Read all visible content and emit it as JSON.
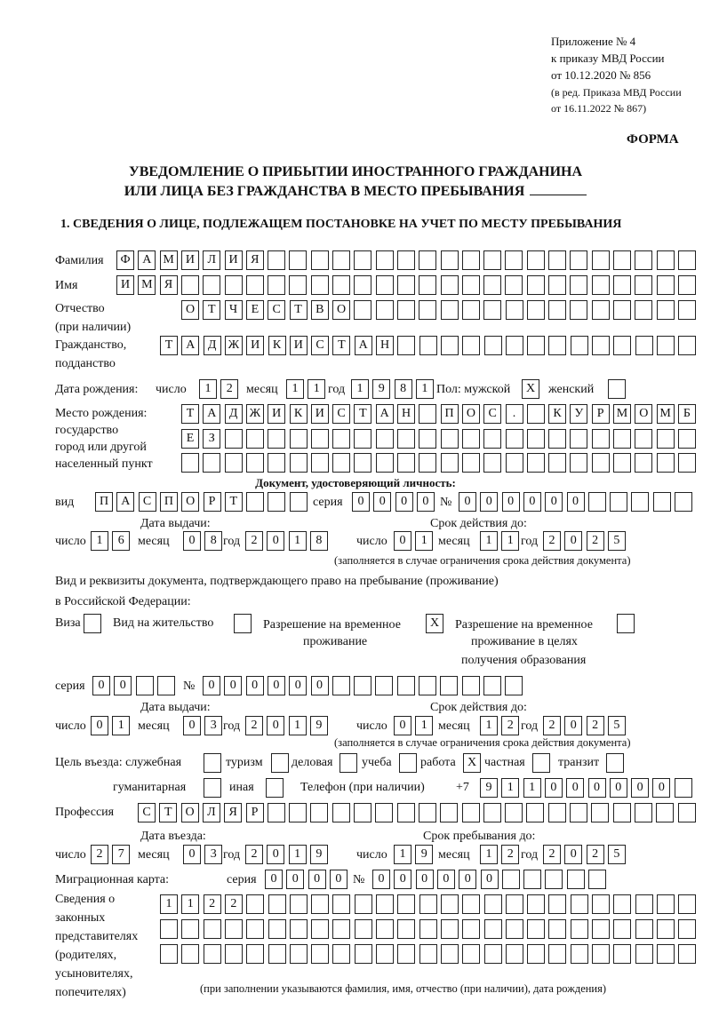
{
  "header": {
    "line1": "Приложение № 4",
    "line2": "к приказу МВД России",
    "line3": "от 10.12.2020 № 856",
    "line4": "(в ред. Приказа МВД России",
    "line5": "от 16.11.2022 № 867)",
    "form_label": "ФОРМА",
    "title1": "УВЕДОМЛЕНИЕ О ПРИБЫТИИ ИНОСТРАННОГО ГРАЖДАНИНА",
    "title2": "ИЛИ ЛИЦА БЕЗ ГРАЖДАНСТВА В МЕСТО ПРЕБЫВАНИЯ",
    "section1": "1. СВЕДЕНИЯ О ЛИЦЕ, ПОДЛЕЖАЩЕМ ПОСТАНОВКЕ НА УЧЕТ ПО МЕСТУ ПРЕБЫВАНИЯ"
  },
  "person": {
    "surname_label": "Фамилия",
    "surname": [
      "Ф",
      "А",
      "М",
      "И",
      "Л",
      "И",
      "Я",
      "",
      "",
      "",
      "",
      "",
      "",
      "",
      "",
      "",
      "",
      "",
      "",
      "",
      "",
      "",
      "",
      "",
      "",
      "",
      ""
    ],
    "name_label": "Имя",
    "name": [
      "И",
      "М",
      "Я",
      "",
      "",
      "",
      "",
      "",
      "",
      "",
      "",
      "",
      "",
      "",
      "",
      "",
      "",
      "",
      "",
      "",
      "",
      "",
      "",
      "",
      "",
      "",
      ""
    ],
    "patronymic_label": "Отчество",
    "patronymic_label2": "(при наличии)",
    "patronymic": [
      "О",
      "Т",
      "Ч",
      "Е",
      "С",
      "Т",
      "В",
      "О",
      "",
      "",
      "",
      "",
      "",
      "",
      "",
      "",
      "",
      "",
      "",
      "",
      "",
      "",
      "",
      ""
    ],
    "citizenship_label": "Гражданство,",
    "citizenship_label2": "подданство",
    "citizenship": [
      "Т",
      "А",
      "Д",
      "Ж",
      "И",
      "К",
      "И",
      "С",
      "Т",
      "А",
      "Н",
      "",
      "",
      "",
      "",
      "",
      "",
      "",
      "",
      "",
      "",
      "",
      "",
      "",
      ""
    ],
    "birth_label": "Дата рождения:",
    "day_label": "число",
    "month_label": "месяц",
    "year_label": "год",
    "birth_day": [
      "1",
      "2"
    ],
    "birth_month": [
      "1",
      "1"
    ],
    "birth_year": [
      "1",
      "9",
      "8",
      "1"
    ],
    "sex_male_label": "Пол: мужской",
    "sex_male": [
      "X"
    ],
    "sex_female_label": "женский",
    "sex_female": [
      ""
    ],
    "birthplace_label1": "Место рождения:",
    "birthplace_label2": "государство",
    "birthplace_label3": "город или другой",
    "birthplace_label4": "населенный пункт",
    "birthplace_row1": [
      "Т",
      "А",
      "Д",
      "Ж",
      "И",
      "К",
      "И",
      "С",
      "Т",
      "А",
      "Н",
      "",
      "П",
      "О",
      "С",
      ".",
      "",
      "К",
      "У",
      "Р",
      "М",
      "О",
      "М",
      "Б"
    ],
    "birthplace_row2": [
      "Е",
      "З",
      "",
      "",
      "",
      "",
      "",
      "",
      "",
      "",
      "",
      "",
      "",
      "",
      "",
      "",
      "",
      "",
      "",
      "",
      "",
      "",
      "",
      ""
    ],
    "birthplace_row3": [
      "",
      "",
      "",
      "",
      "",
      "",
      "",
      "",
      "",
      "",
      "",
      "",
      "",
      "",
      "",
      "",
      "",
      "",
      "",
      "",
      "",
      "",
      "",
      ""
    ]
  },
  "id_doc": {
    "heading": "Документ, удостоверяющий личность:",
    "kind_label": "вид",
    "kind": [
      "П",
      "А",
      "С",
      "П",
      "О",
      "Р",
      "Т",
      "",
      "",
      ""
    ],
    "series_label": "серия",
    "series": [
      "0",
      "0",
      "0",
      "0"
    ],
    "number_label": "№",
    "number": [
      "0",
      "0",
      "0",
      "0",
      "0",
      "0",
      "",
      "",
      "",
      "",
      ""
    ],
    "issue_label": "Дата выдачи:",
    "valid_label": "Срок действия до:",
    "issue_day": [
      "1",
      "6"
    ],
    "issue_month": [
      "0",
      "8"
    ],
    "issue_year": [
      "2",
      "0",
      "1",
      "8"
    ],
    "valid_day": [
      "0",
      "1"
    ],
    "valid_month": [
      "1",
      "1"
    ],
    "valid_year": [
      "2",
      "0",
      "2",
      "5"
    ],
    "note": "(заполняется в случае ограничения срока действия документа)"
  },
  "stay_doc": {
    "heading1": "Вид и реквизиты документа, подтверждающего право на пребывание (проживание)",
    "heading2": "в Российской Федерации:",
    "visa_label": "Виза",
    "visa": [
      ""
    ],
    "residence_label": "Вид на жительство",
    "residence": [
      ""
    ],
    "temp_label1": "Разрешение на временное",
    "temp_label2": "проживание",
    "temp": [
      "X"
    ],
    "edu_label1": "Разрешение на временное",
    "edu_label2": "проживание в целях",
    "edu_label3": "получения образования",
    "edu": [
      ""
    ],
    "series_label": "серия",
    "series": [
      "0",
      "0",
      "",
      ""
    ],
    "number_label": "№",
    "number": [
      "0",
      "0",
      "0",
      "0",
      "0",
      "0",
      "",
      "",
      "",
      "",
      "",
      "",
      "",
      "",
      ""
    ],
    "issue_label": "Дата выдачи:",
    "valid_label": "Срок действия до:",
    "issue_day": [
      "0",
      "1"
    ],
    "issue_month": [
      "0",
      "3"
    ],
    "issue_year": [
      "2",
      "0",
      "1",
      "9"
    ],
    "valid_day": [
      "0",
      "1"
    ],
    "valid_month": [
      "1",
      "2"
    ],
    "valid_year": [
      "2",
      "0",
      "2",
      "5"
    ],
    "note": "(заполняется в случае ограничения срока действия документа)"
  },
  "purpose": {
    "label": "Цель въезда: служебная",
    "official": [
      ""
    ],
    "tourism_label": "туризм",
    "tourism": [
      ""
    ],
    "business_label": "деловая",
    "business": [
      ""
    ],
    "study_label": "учеба",
    "study": [
      ""
    ],
    "work_label": "работа",
    "work": [
      "X"
    ],
    "private_label": "частная",
    "private": [
      ""
    ],
    "transit_label": "транзит",
    "transit": [
      ""
    ],
    "humanitarian_label": "гуманитарная",
    "humanitarian": [
      ""
    ],
    "other_label": "иная",
    "other": [
      ""
    ],
    "phone_label": "Телефон (при наличии)",
    "phone_prefix": "+7",
    "phone": [
      "9",
      "1",
      "1",
      "0",
      "0",
      "0",
      "0",
      "0",
      "0",
      ""
    ]
  },
  "profession": {
    "label": "Профессия",
    "value": [
      "С",
      "Т",
      "О",
      "Л",
      "Я",
      "Р",
      "",
      "",
      "",
      "",
      "",
      "",
      "",
      "",
      "",
      "",
      "",
      "",
      "",
      "",
      "",
      "",
      "",
      "",
      "",
      ""
    ]
  },
  "entry": {
    "entry_label": "Дата въезда:",
    "stay_until_label": "Срок пребывания до:",
    "entry_day": [
      "2",
      "7"
    ],
    "entry_month": [
      "0",
      "3"
    ],
    "entry_year": [
      "2",
      "0",
      "1",
      "9"
    ],
    "until_day": [
      "1",
      "9"
    ],
    "until_month": [
      "1",
      "2"
    ],
    "until_year": [
      "2",
      "0",
      "2",
      "5"
    ]
  },
  "migration_card": {
    "label": "Миграционная карта:",
    "series_label": "серия",
    "series": [
      "0",
      "0",
      "0",
      "0"
    ],
    "number_label": "№",
    "number": [
      "0",
      "0",
      "0",
      "0",
      "0",
      "0",
      "",
      "",
      "",
      "",
      ""
    ]
  },
  "representatives": {
    "label1": "Сведения о",
    "label2": "законных",
    "label3": "представителях",
    "label4": "(родителях,",
    "label5": "усыновителях,",
    "label6": "попечителях)",
    "row1": [
      "1",
      "1",
      "2",
      "2",
      "",
      "",
      "",
      "",
      "",
      "",
      "",
      "",
      "",
      "",
      "",
      "",
      "",
      "",
      "",
      "",
      "",
      "",
      "",
      "",
      ""
    ],
    "row2": [
      "",
      "",
      "",
      "",
      "",
      "",
      "",
      "",
      "",
      "",
      "",
      "",
      "",
      "",
      "",
      "",
      "",
      "",
      "",
      "",
      "",
      "",
      "",
      "",
      ""
    ],
    "row3": [
      "",
      "",
      "",
      "",
      "",
      "",
      "",
      "",
      "",
      "",
      "",
      "",
      "",
      "",
      "",
      "",
      "",
      "",
      "",
      "",
      "",
      "",
      "",
      "",
      ""
    ],
    "note": "(при заполнении указываются фамилия, имя, отчество (при наличии), дата рождения)"
  }
}
